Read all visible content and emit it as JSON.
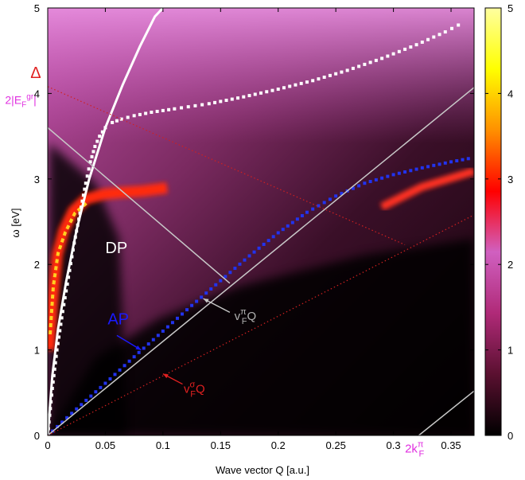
{
  "chart_data": {
    "type": "heatmap",
    "xlabel": "Wave vector Q [a.u.]",
    "ylabel": "ω [eV]",
    "xlim": [
      0,
      0.37
    ],
    "ylim": [
      0,
      5
    ],
    "x_ticks": [
      {
        "value": 0,
        "label": "0"
      },
      {
        "value": 0.05,
        "label": "0.05"
      },
      {
        "value": 0.1,
        "label": "0.1"
      },
      {
        "value": 0.15,
        "label": "0.15"
      },
      {
        "value": 0.2,
        "label": "0.2"
      },
      {
        "value": 0.25,
        "label": "0.25"
      },
      {
        "value": 0.3,
        "label": "0.3"
      },
      {
        "value": 0.35,
        "label": "0.35"
      }
    ],
    "y_ticks": [
      {
        "value": 0,
        "label": "0"
      },
      {
        "value": 1,
        "label": "1"
      },
      {
        "value": 2,
        "label": "2"
      },
      {
        "value": 3,
        "label": "3"
      },
      {
        "value": 4,
        "label": "4"
      },
      {
        "value": 5,
        "label": "5"
      }
    ],
    "colorbar": {
      "range": [
        0,
        5
      ],
      "ticks": [
        {
          "value": 0,
          "label": "0"
        },
        {
          "value": 1,
          "label": "1"
        },
        {
          "value": 2,
          "label": "2"
        },
        {
          "value": 3,
          "label": "3"
        },
        {
          "value": 4,
          "label": "4"
        },
        {
          "value": 5,
          "label": "5"
        }
      ],
      "colors": [
        "#000000",
        "#5a1030",
        "#b02a78",
        "#d060c0",
        "#ff0000",
        "#ff9000",
        "#ffff00",
        "#ffffa0"
      ]
    },
    "annotations": [
      {
        "id": "delta",
        "text": "Δ",
        "color": "#e02020",
        "x": -0.015,
        "y": 4.18
      },
      {
        "id": "two-ef",
        "text": "2|E",
        "sub": "F",
        "sup": "gr",
        "tail": "|",
        "color": "#e030e0",
        "x": -0.037,
        "y": 3.88
      },
      {
        "id": "dp",
        "text": "DP",
        "color": "#ffffff",
        "x": 0.05,
        "y": 2.13
      },
      {
        "id": "ap",
        "text": "AP",
        "color": "#1a1aff",
        "x": 0.052,
        "y": 1.3
      },
      {
        "id": "vpi",
        "text": "v",
        "sup": "π",
        "sub": "F",
        "tail": "Q",
        "color": "#b0b0b0",
        "x": 0.162,
        "y": 1.35
      },
      {
        "id": "vsigma",
        "text": "v",
        "sup": "σ",
        "sub": "F",
        "tail": "Q",
        "color": "#e02020",
        "x": 0.118,
        "y": 0.5
      },
      {
        "id": "twok",
        "text": "2k",
        "sup": "π",
        "sub": "F",
        "color": "#e030e0",
        "x": 0.31,
        "y": -0.2
      }
    ],
    "series": [
      {
        "id": "white-solid",
        "style": "solid",
        "color": "#ffffff",
        "x": [
          0.0,
          0.004,
          0.009,
          0.016,
          0.025,
          0.036,
          0.05,
          0.065,
          0.08,
          0.093,
          0.1
        ],
        "y": [
          0.0,
          0.7,
          1.25,
          1.8,
          2.4,
          3.0,
          3.6,
          4.1,
          4.55,
          4.9,
          5.0
        ]
      },
      {
        "id": "white-dotted",
        "style": "squares",
        "color": "#ffffff",
        "x": [
          0.0,
          0.004,
          0.008,
          0.013,
          0.018,
          0.023,
          0.028,
          0.033,
          0.037,
          0.041,
          0.045,
          0.05,
          0.056,
          0.064,
          0.075,
          0.09,
          0.11,
          0.14,
          0.17,
          0.2,
          0.23,
          0.26,
          0.29,
          0.32,
          0.345,
          0.362
        ],
        "y": [
          0.0,
          0.55,
          1.0,
          1.45,
          1.85,
          2.25,
          2.6,
          2.95,
          3.2,
          3.38,
          3.5,
          3.6,
          3.66,
          3.7,
          3.74,
          3.78,
          3.82,
          3.88,
          3.96,
          4.05,
          4.15,
          4.27,
          4.41,
          4.57,
          4.72,
          4.84
        ]
      },
      {
        "id": "blue-dotted",
        "style": "squares",
        "color": "#2233ee",
        "x": [
          0.0,
          0.025,
          0.05,
          0.075,
          0.1,
          0.125,
          0.15,
          0.175,
          0.2,
          0.225,
          0.25,
          0.275,
          0.3,
          0.325,
          0.35,
          0.37
        ],
        "y": [
          0.0,
          0.31,
          0.61,
          0.92,
          1.22,
          1.52,
          1.81,
          2.1,
          2.37,
          2.61,
          2.8,
          2.95,
          3.05,
          3.13,
          3.2,
          3.25
        ]
      },
      {
        "id": "vpi-line",
        "style": "thin",
        "color": "#c8c8c8",
        "x": [
          0.0,
          0.37
        ],
        "y": [
          0.0,
          4.07
        ]
      },
      {
        "id": "gray-descending",
        "style": "thin",
        "color": "#c8c8c8",
        "x": [
          0.0,
          0.158
        ],
        "y": [
          3.6,
          1.78
        ]
      },
      {
        "id": "gray-2kf",
        "style": "thin",
        "color": "#c8c8c8",
        "x": [
          0.322,
          0.37
        ],
        "y": [
          0.0,
          0.52
        ]
      },
      {
        "id": "red-vsigma",
        "style": "dotted",
        "color": "#d02020",
        "x": [
          0.0,
          0.37
        ],
        "y": [
          0.0,
          2.58
        ]
      },
      {
        "id": "red-delta",
        "style": "dotted",
        "color": "#d02020",
        "x": [
          0.0,
          0.31
        ],
        "y": [
          4.08,
          2.23
        ]
      }
    ],
    "arrows": [
      {
        "id": "ap-arrow",
        "color": "#1a1aff",
        "from": [
          0.06,
          1.17
        ],
        "to": [
          0.081,
          1.0
        ]
      },
      {
        "id": "vpi-arrow",
        "color": "#c8c8c8",
        "from": [
          0.158,
          1.44
        ],
        "to": [
          0.135,
          1.6
        ]
      },
      {
        "id": "vsigma-arrow",
        "color": "#e02020",
        "from": [
          0.117,
          0.6
        ],
        "to": [
          0.1,
          0.72
        ]
      }
    ]
  }
}
